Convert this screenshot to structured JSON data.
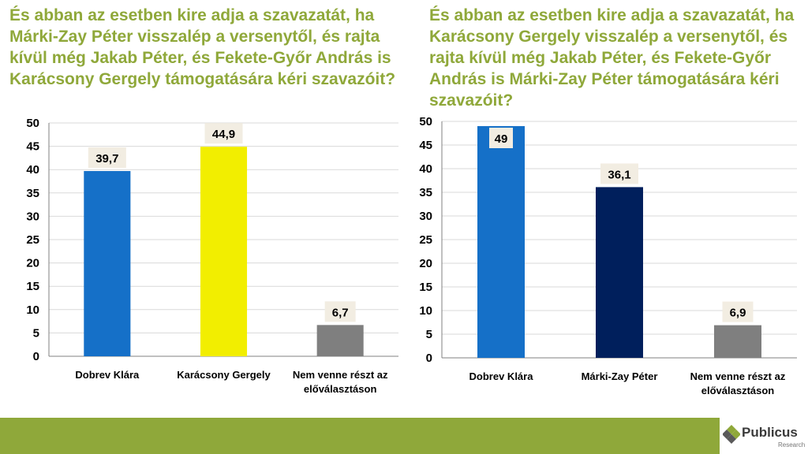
{
  "chart_data": [
    {
      "type": "bar",
      "title": "És abban az esetben kire adja a szavazatát, ha Márki-Zay Péter visszalép a versenytől, és rajta kívül még Jakab Péter, és Fekete-Győr András is Karácsony Gergely támogatására kéri szavazóit?",
      "categories": [
        "Dobrev Klára",
        "Karácsony Gergely",
        "Nem venne részt az előválasztáson"
      ],
      "values": [
        39.7,
        44.9,
        6.7
      ],
      "data_labels": [
        "39,7",
        "44,9",
        "6,7"
      ],
      "colors": [
        "#1570C8",
        "#F2EE00",
        "#7F7F7F"
      ],
      "ylim": [
        0,
        50
      ],
      "yticks": [
        0,
        5,
        10,
        15,
        20,
        25,
        30,
        35,
        40,
        45,
        50
      ],
      "ytick_labels": [
        "0",
        "5",
        "10",
        "15",
        "20",
        "25",
        "30",
        "35",
        "40",
        "45",
        "50"
      ],
      "grid": true,
      "xlabel": "",
      "ylabel": ""
    },
    {
      "type": "bar",
      "title": "És abban az esetben kire adja a szavazatát, ha Karácsony Gergely visszalép a versenytől, és rajta kívül még Jakab Péter, és Fekete-Győr András is Márki-Zay Péter támogatására kéri szavazóit?",
      "categories": [
        "Dobrev Klára",
        "Márki-Zay Péter",
        "Nem venne részt az előválasztáson"
      ],
      "values": [
        49,
        36.1,
        6.9
      ],
      "data_labels": [
        "49",
        "36,1",
        "6,9"
      ],
      "colors": [
        "#1570C8",
        "#001F5C",
        "#7F7F7F"
      ],
      "ylim": [
        0,
        50
      ],
      "yticks": [
        0,
        5,
        10,
        15,
        20,
        25,
        30,
        35,
        40,
        45,
        50
      ],
      "ytick_labels": [
        "0",
        "5",
        "10",
        "15",
        "20",
        "25",
        "30",
        "35",
        "40",
        "45",
        "50"
      ],
      "grid": true,
      "xlabel": "",
      "ylabel": ""
    }
  ],
  "footer": {
    "accent_color": "#8FA83A",
    "logo_icon": "publicus-diamond-icon",
    "logo_text": "Publicus",
    "logo_subtext": "Research"
  }
}
